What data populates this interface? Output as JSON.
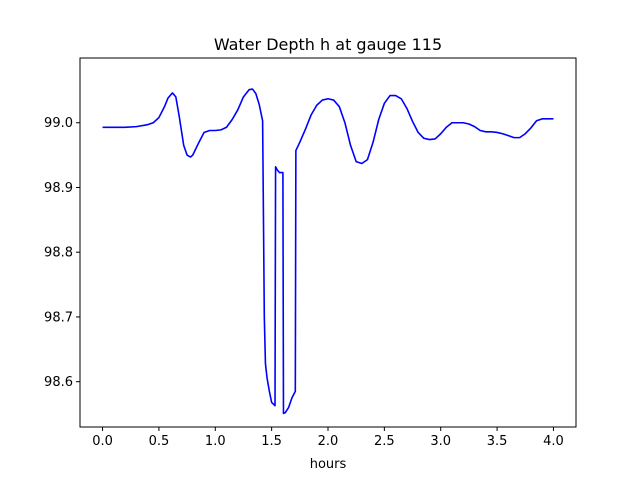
{
  "chart_data": {
    "type": "line",
    "title": "Water Depth h at gauge 115",
    "xlabel": "hours",
    "ylabel": "",
    "xlim": [
      -0.2,
      4.2
    ],
    "ylim": [
      98.53,
      99.1
    ],
    "xticks": [
      0.0,
      0.5,
      1.0,
      1.5,
      2.0,
      2.5,
      3.0,
      3.5,
      4.0
    ],
    "xtick_labels": [
      "0.0",
      "0.5",
      "1.0",
      "1.5",
      "2.0",
      "2.5",
      "3.0",
      "3.5",
      "4.0"
    ],
    "yticks": [
      98.6,
      98.7,
      98.8,
      98.9,
      99.0
    ],
    "ytick_labels": [
      "98.6",
      "98.7",
      "98.8",
      "98.9",
      "99.0"
    ],
    "grid": false,
    "series": [
      {
        "color": "#0000ff",
        "x": [
          0.0,
          0.1,
          0.2,
          0.3,
          0.4,
          0.45,
          0.5,
          0.55,
          0.58,
          0.62,
          0.65,
          0.68,
          0.72,
          0.75,
          0.78,
          0.8,
          0.85,
          0.9,
          0.95,
          1.0,
          1.05,
          1.1,
          1.15,
          1.2,
          1.25,
          1.3,
          1.33,
          1.36,
          1.39,
          1.42,
          1.435,
          1.445,
          1.45,
          1.46,
          1.48,
          1.5,
          1.53,
          1.535,
          1.55,
          1.57,
          1.6,
          1.605,
          1.62,
          1.65,
          1.68,
          1.71,
          1.715,
          1.75,
          1.8,
          1.85,
          1.9,
          1.95,
          2.0,
          2.05,
          2.1,
          2.15,
          2.2,
          2.25,
          2.3,
          2.35,
          2.4,
          2.45,
          2.5,
          2.55,
          2.6,
          2.65,
          2.7,
          2.75,
          2.8,
          2.85,
          2.9,
          2.95,
          3.0,
          3.05,
          3.1,
          3.15,
          3.2,
          3.25,
          3.3,
          3.35,
          3.4,
          3.45,
          3.5,
          3.55,
          3.6,
          3.65,
          3.7,
          3.75,
          3.8,
          3.85,
          3.9,
          3.95,
          4.0
        ],
        "y": [
          98.993,
          98.993,
          98.993,
          98.994,
          98.997,
          99.0,
          99.008,
          99.025,
          99.038,
          99.046,
          99.04,
          99.01,
          98.965,
          98.95,
          98.947,
          98.95,
          98.968,
          98.985,
          98.988,
          98.988,
          98.989,
          98.993,
          99.005,
          99.02,
          99.04,
          99.051,
          99.052,
          99.045,
          99.028,
          99.003,
          98.7,
          98.628,
          98.62,
          98.605,
          98.585,
          98.568,
          98.563,
          98.932,
          98.927,
          98.923,
          98.923,
          98.551,
          98.552,
          98.56,
          98.575,
          98.585,
          98.957,
          98.97,
          98.99,
          99.012,
          99.027,
          99.035,
          99.037,
          99.035,
          99.025,
          99.0,
          98.965,
          98.94,
          98.937,
          98.943,
          98.97,
          99.005,
          99.03,
          99.042,
          99.042,
          99.037,
          99.022,
          99.002,
          98.985,
          98.976,
          98.974,
          98.975,
          98.983,
          98.993,
          99.0,
          99.0,
          99.0,
          98.998,
          98.994,
          98.988,
          98.986,
          98.986,
          98.985,
          98.983,
          98.98,
          98.977,
          98.977,
          98.983,
          98.992,
          99.003,
          99.006,
          99.006,
          99.006
        ]
      }
    ]
  }
}
